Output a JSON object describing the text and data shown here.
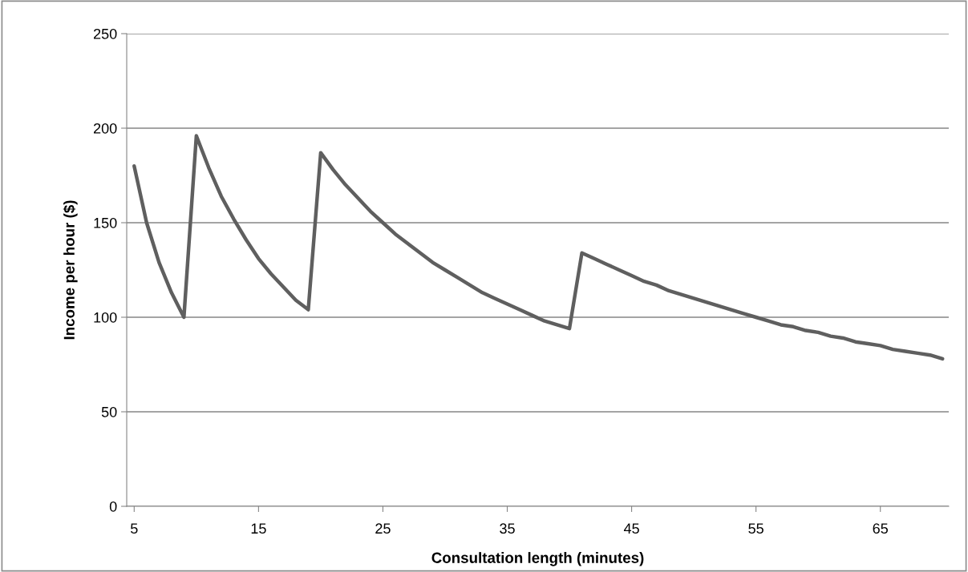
{
  "chart_data": {
    "type": "line",
    "xlabel": "Consultation length (minutes)",
    "ylabel": "Income per hour ($)",
    "x": [
      5,
      6,
      7,
      8,
      9,
      10,
      11,
      12,
      13,
      14,
      15,
      16,
      17,
      18,
      19,
      20,
      21,
      22,
      23,
      24,
      25,
      26,
      27,
      28,
      29,
      30,
      31,
      32,
      33,
      34,
      35,
      36,
      37,
      38,
      39,
      40,
      41,
      42,
      43,
      44,
      45,
      46,
      47,
      48,
      49,
      50,
      51,
      52,
      53,
      54,
      55,
      56,
      57,
      58,
      59,
      60,
      61,
      62,
      63,
      64,
      65,
      66,
      67,
      68,
      69,
      70
    ],
    "series": [
      {
        "color": "#5f5f5f",
        "values": [
          180,
          150,
          129,
          113,
          100,
          196,
          179,
          164,
          152,
          141,
          131,
          123,
          116,
          109,
          104,
          187,
          178,
          170,
          163,
          156,
          150,
          144,
          139,
          134,
          129,
          125,
          121,
          117,
          113,
          110,
          107,
          104,
          101,
          98,
          96,
          94,
          134,
          131,
          128,
          125,
          122,
          119,
          117,
          114,
          112,
          110,
          108,
          106,
          104,
          102,
          100,
          98,
          96,
          95,
          93,
          92,
          90,
          89,
          87,
          86,
          85,
          83,
          82,
          81,
          80,
          78
        ]
      }
    ],
    "xlim": [
      4.4,
      70.5
    ],
    "xticks": [
      5,
      15,
      25,
      35,
      45,
      55,
      65
    ],
    "ylim": [
      0,
      250
    ],
    "yticks": [
      0,
      50,
      100,
      150,
      200,
      250
    ],
    "grid": "y",
    "marker": "none",
    "line_style": "solid"
  }
}
